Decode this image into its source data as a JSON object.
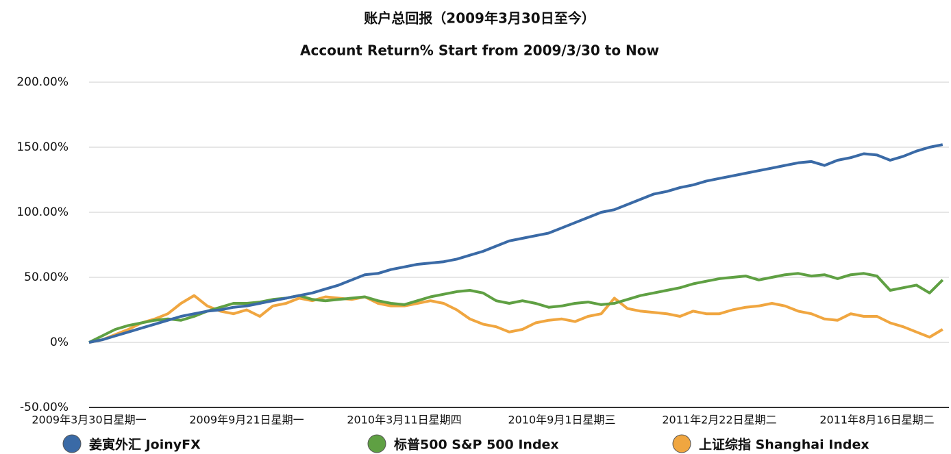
{
  "chart_data": {
    "type": "line",
    "title": "账户总回报（2009年3月30日至今）",
    "subtitle": "Account Return% Start from 2009/3/30 to Now",
    "categories": [
      "2009年3月30日星期一",
      null,
      null,
      null,
      null,
      null,
      null,
      null,
      null,
      null,
      null,
      null,
      "2009年9月21日星期一",
      null,
      null,
      null,
      null,
      null,
      null,
      null,
      null,
      null,
      null,
      null,
      "2010年3月11日星期四",
      null,
      null,
      null,
      null,
      null,
      null,
      null,
      null,
      null,
      null,
      null,
      "2010年9月1日星期三",
      null,
      null,
      null,
      null,
      null,
      null,
      null,
      null,
      null,
      null,
      null,
      "2011年2月22日星期二",
      null,
      null,
      null,
      null,
      null,
      null,
      null,
      null,
      null,
      null,
      null,
      "2011年8月16日星期二",
      null,
      null,
      null,
      null,
      null
    ],
    "series": [
      {
        "name": "姜寅外汇 JoinyFX",
        "color": "#3a6aa6",
        "values": [
          0,
          2,
          5,
          8,
          11,
          14,
          17,
          20,
          22,
          24,
          25,
          27,
          28,
          30,
          32,
          34,
          36,
          38,
          41,
          44,
          48,
          52,
          53,
          56,
          58,
          60,
          61,
          62,
          64,
          67,
          70,
          74,
          78,
          80,
          82,
          84,
          88,
          92,
          96,
          100,
          102,
          106,
          110,
          114,
          116,
          119,
          121,
          124,
          126,
          128,
          130,
          132,
          134,
          136,
          138,
          139,
          136,
          140,
          142,
          145,
          144,
          140,
          143,
          147,
          150,
          152
        ]
      },
      {
        "name": "标普500 S&P 500 Index",
        "color": "#5fa043",
        "values": [
          0,
          5,
          10,
          13,
          15,
          17,
          18,
          17,
          20,
          24,
          27,
          30,
          30,
          31,
          33,
          34,
          36,
          33,
          32,
          33,
          34,
          35,
          32,
          30,
          29,
          32,
          35,
          37,
          39,
          40,
          38,
          32,
          30,
          32,
          30,
          27,
          28,
          30,
          31,
          29,
          30,
          33,
          36,
          38,
          40,
          42,
          45,
          47,
          49,
          50,
          51,
          48,
          50,
          52,
          53,
          51,
          52,
          49,
          52,
          53,
          51,
          40,
          42,
          44,
          38,
          48
        ]
      },
      {
        "name": "上证综指 Shanghai Index",
        "color": "#f0a640",
        "values": [
          0,
          2,
          6,
          10,
          15,
          18,
          22,
          30,
          36,
          28,
          24,
          22,
          25,
          20,
          28,
          30,
          34,
          32,
          35,
          34,
          33,
          35,
          30,
          28,
          28,
          30,
          32,
          30,
          25,
          18,
          14,
          12,
          8,
          10,
          15,
          17,
          18,
          16,
          20,
          22,
          34,
          26,
          24,
          23,
          22,
          20,
          24,
          22,
          22,
          25,
          27,
          28,
          30,
          28,
          24,
          22,
          18,
          17,
          22,
          20,
          20,
          15,
          12,
          8,
          4,
          10
        ]
      }
    ],
    "ylim": [
      -50,
      200
    ],
    "yticks": [
      {
        "value": -50,
        "label": "-50.00%"
      },
      {
        "value": 0,
        "label": "0%"
      },
      {
        "value": 50,
        "label": "50.00%"
      },
      {
        "value": 100,
        "label": "100.00%"
      },
      {
        "value": 150,
        "label": "150.00%"
      },
      {
        "value": 200,
        "label": "200.00%"
      }
    ],
    "grid": true,
    "legend": "bottom"
  }
}
